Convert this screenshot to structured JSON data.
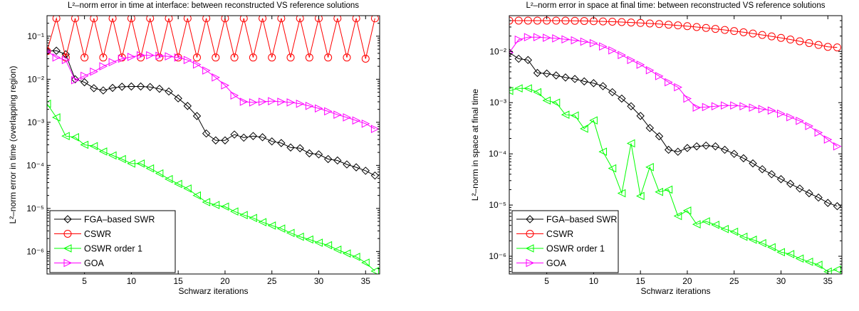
{
  "figure_title": "",
  "chart_data": [
    {
      "type": "line",
      "title": "L²–norm error in time at interface: between reconstructed VS reference solutions",
      "xlabel": "Schwarz iterations",
      "ylabel": "L²–norm error in time (overlapping region)",
      "xlim": [
        1,
        36.5
      ],
      "ylim": [
        3e-07,
        0.3
      ],
      "yscale": "log",
      "xticks": [
        5,
        10,
        15,
        20,
        25,
        30,
        35
      ],
      "yticks": [
        {
          "value": 1e-06,
          "label": "10⁻⁶"
        },
        {
          "value": 1e-05,
          "label": "10⁻⁵"
        },
        {
          "value": 0.0001,
          "label": "10⁻⁴"
        },
        {
          "value": 0.001,
          "label": "10⁻³"
        },
        {
          "value": 0.01,
          "label": "10⁻²"
        },
        {
          "value": 0.1,
          "label": "10⁻¹"
        }
      ],
      "grid": false,
      "legend_position": "bottom-left",
      "series": [
        {
          "name": "FGA–based SWR",
          "color": "#000000",
          "marker": "diamond",
          "x": [
            1,
            2,
            3,
            4,
            5,
            6,
            7,
            8,
            9,
            10,
            11,
            12,
            13,
            14,
            15,
            16,
            17,
            18,
            19,
            20,
            21,
            22,
            23,
            24,
            25,
            26,
            27,
            28,
            29,
            30,
            31,
            32,
            33,
            34,
            35,
            36
          ],
          "y": [
            0.045,
            0.046,
            0.038,
            0.01,
            0.0085,
            0.0062,
            0.0055,
            0.0063,
            0.0067,
            0.0068,
            0.0068,
            0.0066,
            0.006,
            0.0052,
            0.0036,
            0.0024,
            0.0014,
            0.00055,
            0.00038,
            0.00038,
            0.00052,
            0.00044,
            0.00048,
            0.00045,
            0.00036,
            0.00033,
            0.00026,
            0.00025,
            0.00019,
            0.00018,
            0.00014,
            0.00013,
            0.000105,
            9e-05,
            7.5e-05,
            5.8e-05
          ]
        },
        {
          "name": "CSWR",
          "color": "#ff0000",
          "marker": "circle",
          "x": [
            1,
            2,
            3,
            4,
            5,
            6,
            7,
            8,
            9,
            10,
            11,
            12,
            13,
            14,
            15,
            16,
            17,
            18,
            19,
            20,
            21,
            22,
            23,
            24,
            25,
            26,
            27,
            28,
            29,
            30,
            31,
            32,
            33,
            34,
            35,
            36
          ],
          "y": [
            0.045,
            0.26,
            0.032,
            0.26,
            0.032,
            0.26,
            0.032,
            0.26,
            0.032,
            0.26,
            0.032,
            0.26,
            0.032,
            0.26,
            0.032,
            0.26,
            0.032,
            0.26,
            0.032,
            0.26,
            0.032,
            0.26,
            0.032,
            0.26,
            0.032,
            0.26,
            0.032,
            0.26,
            0.032,
            0.26,
            0.032,
            0.26,
            0.032,
            0.26,
            0.03,
            0.26
          ]
        },
        {
          "name": "OSWR order 1",
          "color": "#00ff00",
          "marker": "triangle-left",
          "x": [
            1,
            2,
            3,
            4,
            5,
            6,
            7,
            8,
            9,
            10,
            11,
            12,
            13,
            14,
            15,
            16,
            17,
            18,
            19,
            20,
            21,
            22,
            23,
            24,
            25,
            26,
            27,
            28,
            29,
            30,
            31,
            32,
            33,
            34,
            35,
            36
          ],
          "y": [
            0.0027,
            0.0013,
            0.00048,
            0.00045,
            0.0003,
            0.00028,
            0.00021,
            0.00017,
            0.00014,
            0.00011,
            0.00011,
            8.5e-05,
            6.5e-05,
            4.8e-05,
            3.7e-05,
            2.9e-05,
            2e-05,
            1.4e-05,
            1.2e-05,
            1.1e-05,
            8.5e-06,
            7e-06,
            6e-06,
            4.8e-06,
            4e-06,
            3.4e-06,
            2.7e-06,
            2.2e-06,
            1.9e-06,
            1.6e-06,
            1.4e-06,
            1.1e-06,
            9e-07,
            7.5e-07,
            5.5e-07,
            3.5e-07
          ]
        },
        {
          "name": "GOA",
          "color": "#ff00ff",
          "marker": "triangle-right",
          "x": [
            1,
            2,
            3,
            4,
            5,
            6,
            7,
            8,
            9,
            10,
            11,
            12,
            13,
            14,
            15,
            16,
            17,
            18,
            19,
            20,
            21,
            22,
            23,
            24,
            25,
            26,
            27,
            28,
            29,
            30,
            31,
            32,
            33,
            34,
            35,
            36
          ],
          "y": [
            0.045,
            0.032,
            0.028,
            0.0095,
            0.012,
            0.015,
            0.02,
            0.025,
            0.03,
            0.033,
            0.036,
            0.036,
            0.035,
            0.034,
            0.032,
            0.028,
            0.022,
            0.016,
            0.011,
            0.0072,
            0.0042,
            0.003,
            0.0029,
            0.003,
            0.0031,
            0.003,
            0.0029,
            0.0027,
            0.0024,
            0.0021,
            0.0018,
            0.0015,
            0.0013,
            0.0011,
            0.00093,
            0.0007
          ]
        }
      ]
    },
    {
      "type": "line",
      "title": "L²–norm error in space at final time: between reconstructed VS reference solutions",
      "xlabel": "Schwarz iterations",
      "ylabel": "L²–norm in space at final time",
      "xlim": [
        1,
        36.5
      ],
      "ylim": [
        4.5e-07,
        0.05
      ],
      "yscale": "log",
      "xticks": [
        5,
        10,
        15,
        20,
        25,
        30,
        35
      ],
      "yticks": [
        {
          "value": 1e-06,
          "label": "10⁻⁶"
        },
        {
          "value": 1e-05,
          "label": "10⁻⁵"
        },
        {
          "value": 0.0001,
          "label": "10⁻⁴"
        },
        {
          "value": 0.001,
          "label": "10⁻³"
        },
        {
          "value": 0.01,
          "label": "10⁻²"
        }
      ],
      "grid": false,
      "legend_position": "bottom-left",
      "series": [
        {
          "name": "FGA–based SWR",
          "color": "#000000",
          "marker": "diamond",
          "x": [
            1,
            2,
            3,
            4,
            5,
            6,
            7,
            8,
            9,
            10,
            11,
            12,
            13,
            14,
            15,
            16,
            17,
            18,
            19,
            20,
            21,
            22,
            23,
            24,
            25,
            26,
            27,
            28,
            29,
            30,
            31,
            32,
            33,
            34,
            35,
            36
          ],
          "y": [
            0.0095,
            0.0072,
            0.0068,
            0.0038,
            0.0037,
            0.0034,
            0.0031,
            0.0029,
            0.0026,
            0.0024,
            0.0021,
            0.0016,
            0.0012,
            0.00085,
            0.00055,
            0.00032,
            0.00022,
            0.00012,
            0.00011,
            0.00013,
            0.00014,
            0.000145,
            0.00014,
            0.00012,
            0.0001,
            8.2e-05,
            6.5e-05,
            5e-05,
            4e-05,
            3.2e-05,
            2.6e-05,
            2.1e-05,
            1.7e-05,
            1.4e-05,
            1.1e-05,
            9.5e-06
          ]
        },
        {
          "name": "CSWR",
          "color": "#ff0000",
          "marker": "circle",
          "x": [
            1,
            2,
            3,
            4,
            5,
            6,
            7,
            8,
            9,
            10,
            11,
            12,
            13,
            14,
            15,
            16,
            17,
            18,
            19,
            20,
            21,
            22,
            23,
            24,
            25,
            26,
            27,
            28,
            29,
            30,
            31,
            32,
            33,
            34,
            35,
            36
          ],
          "y": [
            0.04,
            0.04,
            0.04,
            0.04,
            0.04,
            0.04,
            0.0399,
            0.0397,
            0.0394,
            0.039,
            0.0386,
            0.0381,
            0.0375,
            0.0368,
            0.036,
            0.0352,
            0.0343,
            0.0333,
            0.0323,
            0.0312,
            0.03,
            0.0288,
            0.0276,
            0.0263,
            0.025,
            0.0237,
            0.0224,
            0.021,
            0.0197,
            0.0184,
            0.0171,
            0.0158,
            0.0146,
            0.0134,
            0.0123,
            0.012
          ]
        },
        {
          "name": "OSWR order 1",
          "color": "#00ff00",
          "marker": "triangle-left",
          "x": [
            1,
            2,
            3,
            4,
            5,
            6,
            7,
            8,
            9,
            10,
            11,
            12,
            13,
            14,
            15,
            16,
            17,
            18,
            19,
            20,
            21,
            22,
            23,
            24,
            25,
            26,
            27,
            28,
            29,
            30,
            31,
            32,
            33,
            34,
            35,
            36
          ],
          "y": [
            0.0017,
            0.0019,
            0.0019,
            0.0016,
            0.0011,
            0.001,
            0.00058,
            0.00056,
            0.00031,
            0.00045,
            0.00011,
            5.2e-05,
            1.7e-05,
            0.00016,
            1.5e-05,
            5.5e-05,
            1.8e-05,
            2e-05,
            6.1e-06,
            7.8e-06,
            4.2e-06,
            4.8e-06,
            4.1e-06,
            3.4e-06,
            3e-06,
            2.4e-06,
            2.1e-06,
            1.8e-06,
            1.5e-06,
            1.2e-06,
            1.1e-06,
            9e-07,
            7.8e-07,
            6.8e-07,
            5e-07,
            5.5e-07
          ]
        },
        {
          "name": "GOA",
          "color": "#ff00ff",
          "marker": "triangle-right",
          "x": [
            1,
            2,
            3,
            4,
            5,
            6,
            7,
            8,
            9,
            10,
            11,
            12,
            13,
            14,
            15,
            16,
            17,
            18,
            19,
            20,
            21,
            22,
            23,
            24,
            25,
            26,
            27,
            28,
            29,
            30,
            31,
            32,
            33,
            34,
            35,
            36
          ],
          "y": [
            0.0095,
            0.017,
            0.019,
            0.019,
            0.0185,
            0.018,
            0.0172,
            0.0165,
            0.0155,
            0.0145,
            0.0125,
            0.0105,
            0.0085,
            0.0068,
            0.0055,
            0.0043,
            0.0033,
            0.0025,
            0.002,
            0.0012,
            0.0008,
            0.00082,
            0.00085,
            0.00088,
            0.00088,
            0.00085,
            0.0008,
            0.00075,
            0.0007,
            0.00061,
            0.00052,
            0.00044,
            0.00035,
            0.00026,
            0.00019,
            0.00014
          ]
        }
      ]
    }
  ]
}
